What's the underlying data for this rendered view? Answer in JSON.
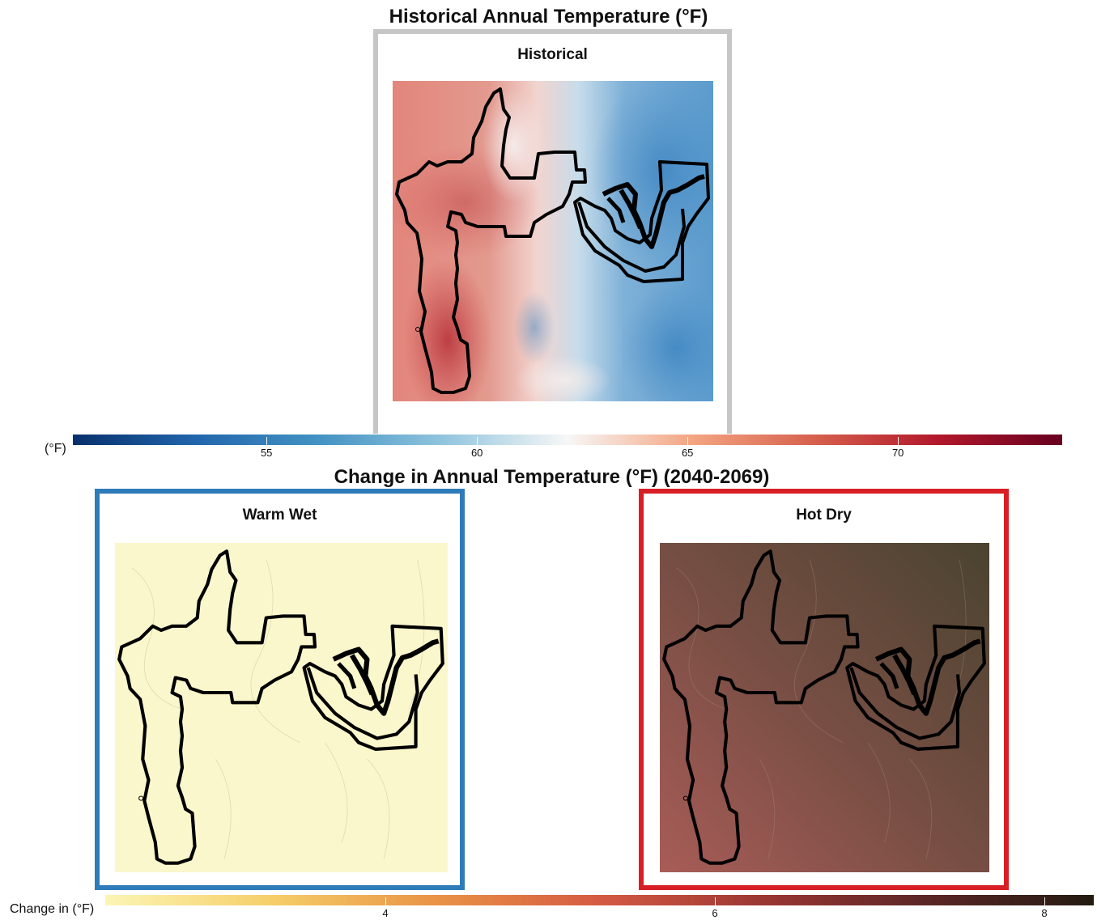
{
  "titles": {
    "top": "Historical Annual Temperature (°F)",
    "bottom": "Change in Annual Temperature (°F) (2040-2069)"
  },
  "panels": {
    "historical": {
      "label": "Historical",
      "border_color": "#c6c6c6"
    },
    "warm_wet": {
      "label": "Warm Wet",
      "border_color": "#2d7bb8",
      "fill_color": "#fbf7cc"
    },
    "hot_dry": {
      "label": "Hot Dry",
      "border_color": "#d91f26"
    }
  },
  "legend_historical": {
    "title": "(°F)",
    "min": 50.4,
    "max": 73.9,
    "ticks": [
      "55",
      "60",
      "65",
      "70"
    ],
    "tick_values": [
      55,
      60,
      65,
      70
    ],
    "colors": [
      "#08306b",
      "#2166ac",
      "#4393c3",
      "#92c5de",
      "#f7f7f7",
      "#f4a582",
      "#d6604d",
      "#b2182b",
      "#67001f"
    ]
  },
  "legend_change": {
    "title": "Change in (°F)",
    "min": 2.3,
    "max": 8.3,
    "ticks": [
      "4",
      "6",
      "8"
    ],
    "tick_values": [
      4,
      6,
      8
    ],
    "colors": [
      "#fcf5b5",
      "#f6cf69",
      "#e99346",
      "#d55a43",
      "#9a3633",
      "#5a2626",
      "#231b10"
    ]
  }
}
